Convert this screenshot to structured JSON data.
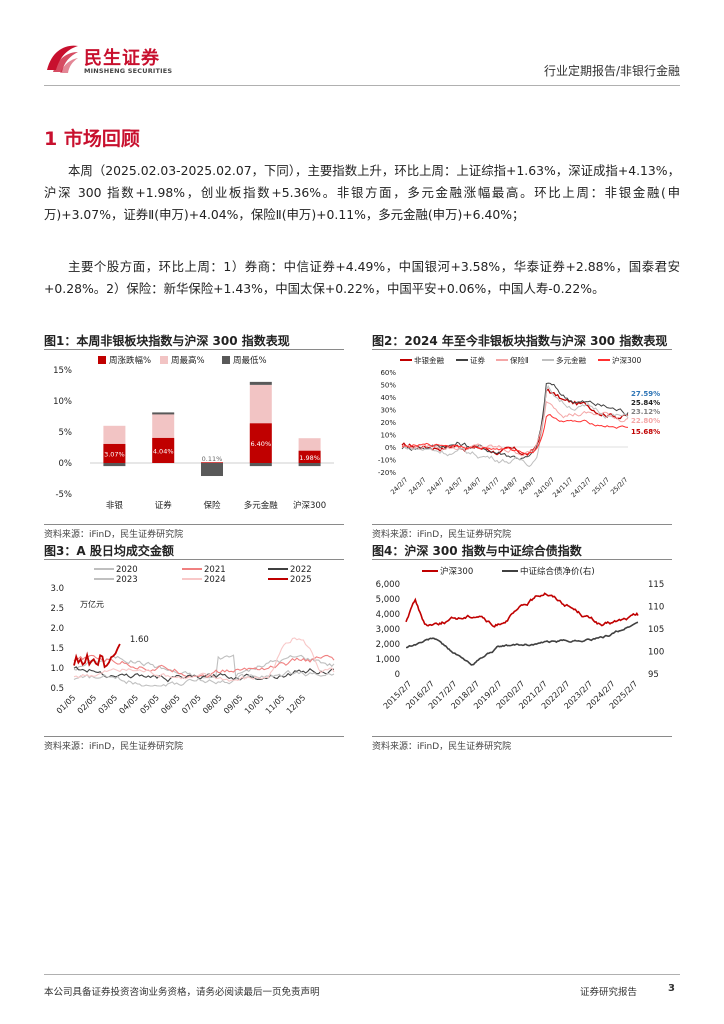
{
  "header": {
    "logo_cn": "民生证券",
    "logo_en": "MINSHENG SECURITIES",
    "report_type": "行业定期报告/非银行金融"
  },
  "section": {
    "title": "1 市场回顾"
  },
  "paragraphs": {
    "p1": "本周（2025.02.03-2025.02.07，下同），主要指数上升，环比上周：上证综指+1.63%，深证成指+4.13%，沪深 300 指数+1.98%，创业板指数+5.36%。非银方面，多元金融涨幅最高。环比上周：非银金融(申万)+3.07%，证券Ⅱ(申万)+4.04%，保险Ⅱ(申万)+0.11%，多元金融(申万)+6.40%；",
    "p2": "主要个股方面，环比上周：1）券商：中信证券+4.49%，中国银河+3.58%，华泰证券+2.88%，国泰君安+0.28%。2）保险：新华保险+1.43%，中国太保+0.22%，中国平安+0.06%，中国人寿-0.22%。"
  },
  "figures": {
    "fig1": {
      "title": "图1：本周非银板块指数与沪深 300 指数表现",
      "source": "资料来源：iFinD，民生证券研究院"
    },
    "fig2": {
      "title": "图2：2024 年至今非银板块指数与沪深 300 指数表现",
      "source": "资料来源：iFinD，民生证券研究院"
    },
    "fig3": {
      "title": "图3：A 股日均成交金额",
      "source": "资料来源：iFinD，民生证券研究院"
    },
    "fig4": {
      "title": "图4：沪深 300 指数与中证综合债指数",
      "source": "资料来源：iFinD，民生证券研究院"
    }
  },
  "chart_data": [
    {
      "id": "fig1",
      "type": "bar",
      "categories": [
        "非银",
        "证券",
        "保险",
        "多元金融",
        "沪深300"
      ],
      "series": [
        {
          "name": "周涨跌幅%",
          "values": [
            3.07,
            4.04,
            0.11,
            6.4,
            1.98
          ],
          "color": "#c00000"
        },
        {
          "name": "周最高%",
          "values": [
            6.0,
            8.0,
            0.1,
            12.6,
            4.0
          ],
          "color": "#f2c4c4"
        },
        {
          "name": "周最低%",
          "values": [
            -0.5,
            0.0,
            -2.1,
            -0.5,
            -0.5
          ],
          "color": "#595959"
        }
      ],
      "data_labels": [
        "3.07%",
        "4.04%",
        "0.11%",
        "6.40%",
        "1.98%"
      ],
      "yticks": [
        "15%",
        "10%",
        "5%",
        "0%",
        "-5%"
      ],
      "ylim": [
        -5,
        15
      ],
      "legend": "top"
    },
    {
      "id": "fig2",
      "type": "line",
      "series": [
        {
          "name": "非银金融",
          "color": "#c00000",
          "end": 25.84
        },
        {
          "name": "证券",
          "color": "#404040",
          "end": 27.59
        },
        {
          "name": "保险Ⅱ",
          "color": "#f4a6a6",
          "end": 22.8
        },
        {
          "name": "多元金融",
          "color": "#bfbfbf",
          "end": 23.12
        },
        {
          "name": "沪深300",
          "color": "#ff3030",
          "end": 15.68
        }
      ],
      "x_ticks": [
        "24/2/7",
        "24/3/7",
        "24/4/7",
        "24/5/7",
        "24/6/7",
        "24/7/7",
        "24/8/7",
        "24/9/7",
        "24/10/7",
        "24/11/7",
        "24/12/7",
        "25/1/7",
        "25/2/7"
      ],
      "yticks": [
        "60%",
        "50%",
        "40%",
        "30%",
        "20%",
        "10%",
        "0%",
        "-10%",
        "-20%"
      ],
      "ylim": [
        -20,
        60
      ],
      "end_labels": [
        {
          "text": "27.59%",
          "color": "#2e75b6"
        },
        {
          "text": "25.84%",
          "color": "#222222"
        },
        {
          "text": "23.12%",
          "color": "#808080"
        },
        {
          "text": "22.80%",
          "color": "#f4a6a6"
        },
        {
          "text": "15.68%",
          "color": "#c00000"
        }
      ],
      "legend": "top"
    },
    {
      "id": "fig3",
      "type": "line",
      "series": [
        {
          "name": "2020",
          "color": "#bfbfbf"
        },
        {
          "name": "2021",
          "color": "#f08080"
        },
        {
          "name": "2022",
          "color": "#404040"
        },
        {
          "name": "2023",
          "color": "#c0c0c0"
        },
        {
          "name": "2024",
          "color": "#f8c8c8"
        },
        {
          "name": "2025",
          "color": "#c00000"
        }
      ],
      "x_ticks": [
        "01/05",
        "02/05",
        "03/05",
        "04/05",
        "05/05",
        "06/05",
        "07/05",
        "08/05",
        "09/05",
        "10/05",
        "11/05",
        "12/05"
      ],
      "yticks": [
        "3.0",
        "2.5",
        "2.0",
        "1.5",
        "1.0",
        "0.5"
      ],
      "ylim": [
        0.5,
        3.0
      ],
      "unit": "万亿元",
      "annotation": "1.60",
      "legend": "top"
    },
    {
      "id": "fig4",
      "type": "line",
      "series": [
        {
          "name": "沪深300",
          "color": "#c00000",
          "axis": "left"
        },
        {
          "name": "中证综合债净价(右)",
          "color": "#404040",
          "axis": "right"
        }
      ],
      "x_ticks": [
        "2015/2/7",
        "2016/2/7",
        "2017/2/7",
        "2018/2/7",
        "2019/2/7",
        "2020/2/7",
        "2021/2/7",
        "2022/2/7",
        "2023/2/7",
        "2024/2/7",
        "2025/2/7"
      ],
      "yticks_left": [
        "6,000",
        "5,000",
        "4,000",
        "3,000",
        "2,000",
        "1,000",
        "0"
      ],
      "yticks_right": [
        "115",
        "110",
        "105",
        "100",
        "95"
      ],
      "ylim_left": [
        0,
        6000
      ],
      "ylim_right": [
        95,
        115
      ],
      "legend": "top"
    }
  ],
  "footer": {
    "disclaimer": "本公司具备证券投资咨询业务资格，请务必阅读最后一页免责声明",
    "report_label": "证券研究报告",
    "page": "3"
  }
}
